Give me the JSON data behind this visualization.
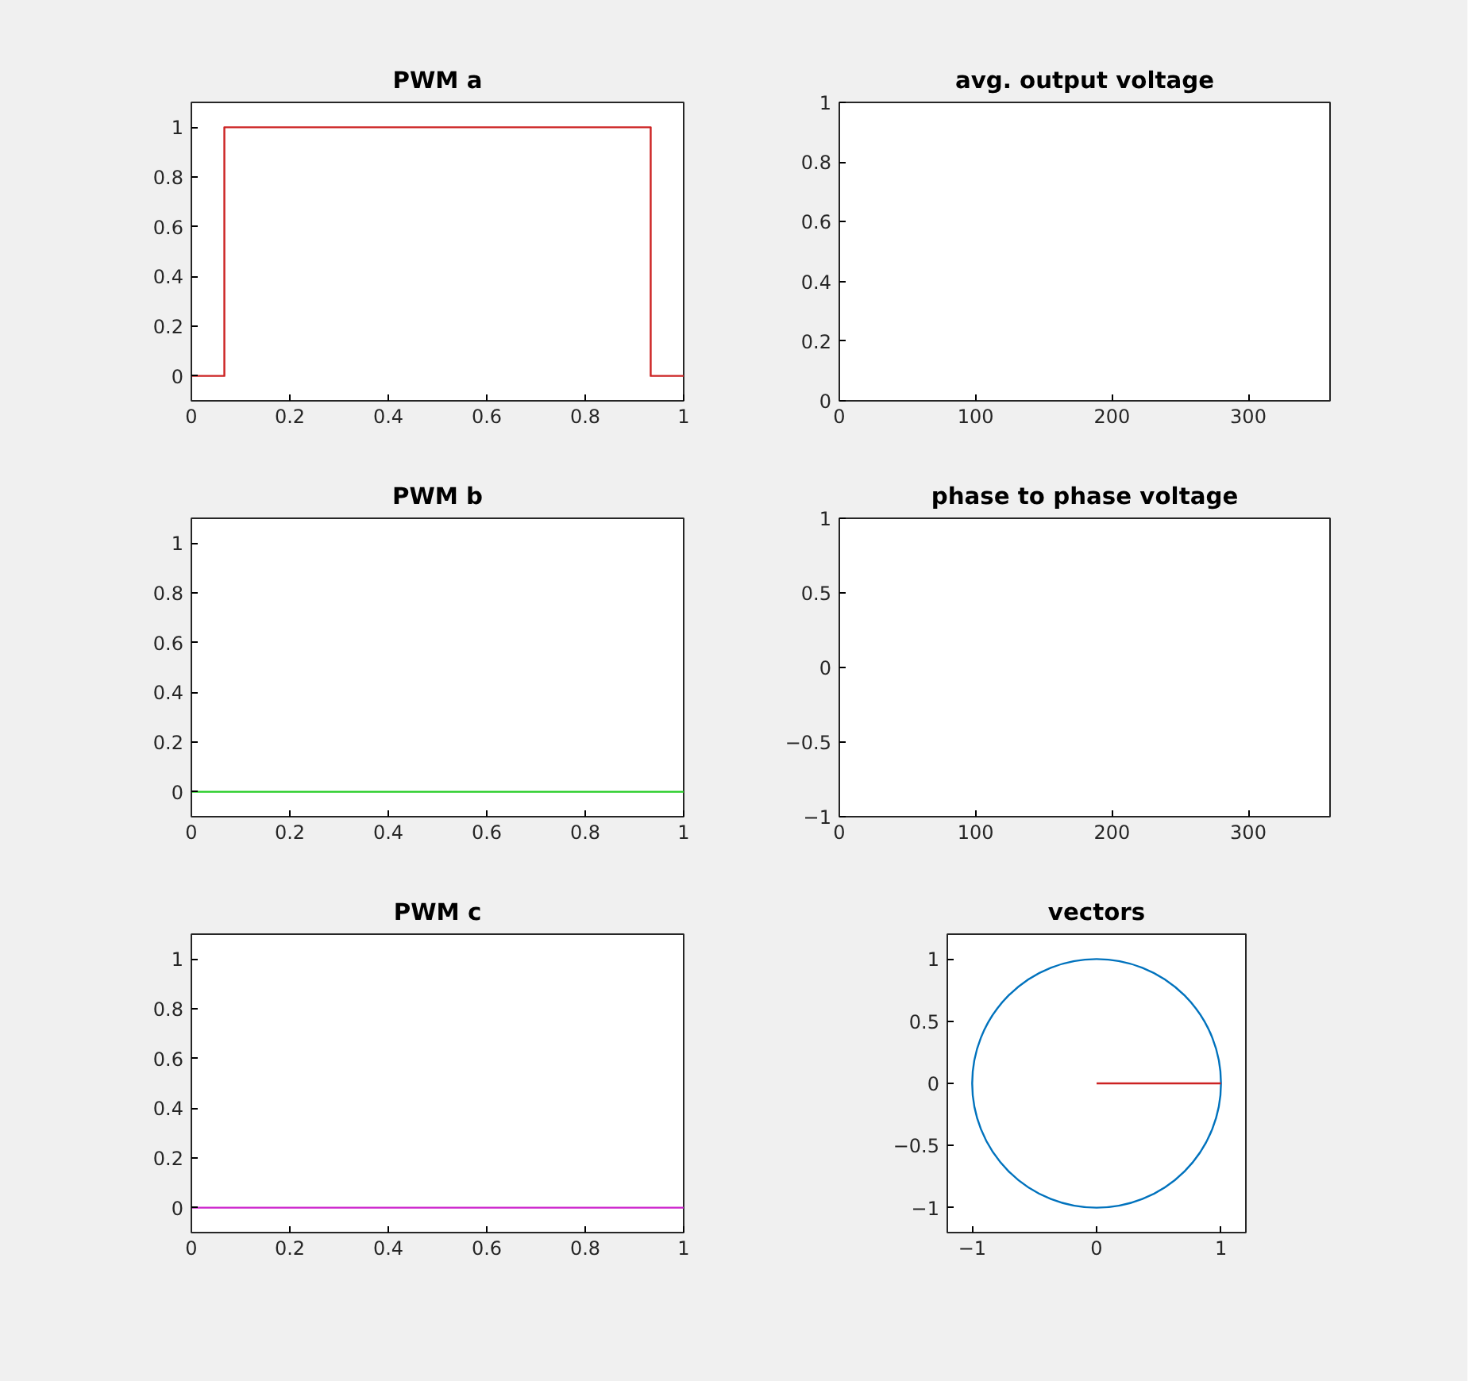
{
  "chart_data": [
    {
      "type": "line",
      "title": "PWM a",
      "xlim": [
        0,
        1
      ],
      "xticks": [
        0,
        0.2,
        0.4,
        0.6,
        0.8,
        1
      ],
      "ylim": [
        -0.1,
        1.1
      ],
      "yticks": [
        0,
        0.2,
        0.4,
        0.6,
        0.8,
        1
      ],
      "series": [
        {
          "color": "#cc2222",
          "x": [
            0,
            0.067,
            0.067,
            0.933,
            0.933,
            1
          ],
          "values": [
            0,
            0,
            1,
            1,
            0,
            0
          ]
        }
      ]
    },
    {
      "type": "line",
      "title": "avg. output voltage",
      "xlim": [
        0,
        360
      ],
      "xticks": [
        0,
        100,
        200,
        300
      ],
      "ylim": [
        0,
        1
      ],
      "yticks": [
        0,
        0.2,
        0.4,
        0.6,
        0.8,
        1
      ]
    },
    {
      "type": "line",
      "title": "PWM b",
      "xlim": [
        0,
        1
      ],
      "xticks": [
        0,
        0.2,
        0.4,
        0.6,
        0.8,
        1
      ],
      "ylim": [
        -0.1,
        1.1
      ],
      "yticks": [
        0,
        0.2,
        0.4,
        0.6,
        0.8,
        1
      ],
      "series": [
        {
          "color": "#22cc22",
          "x": [
            0,
            1
          ],
          "values": [
            0,
            0
          ]
        }
      ]
    },
    {
      "type": "line",
      "title": "phase to phase voltage",
      "xlim": [
        0,
        360
      ],
      "xticks": [
        0,
        100,
        200,
        300
      ],
      "ylim": [
        -1,
        1
      ],
      "yticks": [
        -1,
        -0.5,
        0,
        0.5,
        1
      ]
    },
    {
      "type": "line",
      "title": "PWM c",
      "xlim": [
        0,
        1
      ],
      "xticks": [
        0,
        0.2,
        0.4,
        0.6,
        0.8,
        1
      ],
      "ylim": [
        -0.1,
        1.1
      ],
      "yticks": [
        0,
        0.2,
        0.4,
        0.6,
        0.8,
        1
      ],
      "series": [
        {
          "color": "#cc22cc",
          "x": [
            0,
            1
          ],
          "values": [
            0,
            0
          ]
        }
      ]
    },
    {
      "type": "line",
      "title": "vectors",
      "xlim": [
        -1.2,
        1.2
      ],
      "xticks": [
        -1,
        0,
        1
      ],
      "ylim": [
        -1.2,
        1.2
      ],
      "yticks": [
        -1,
        -0.5,
        0,
        0.5,
        1
      ],
      "series": [
        {
          "color": "#cc2222",
          "x": [
            0,
            1
          ],
          "values": [
            0,
            0
          ]
        }
      ]
    }
  ]
}
